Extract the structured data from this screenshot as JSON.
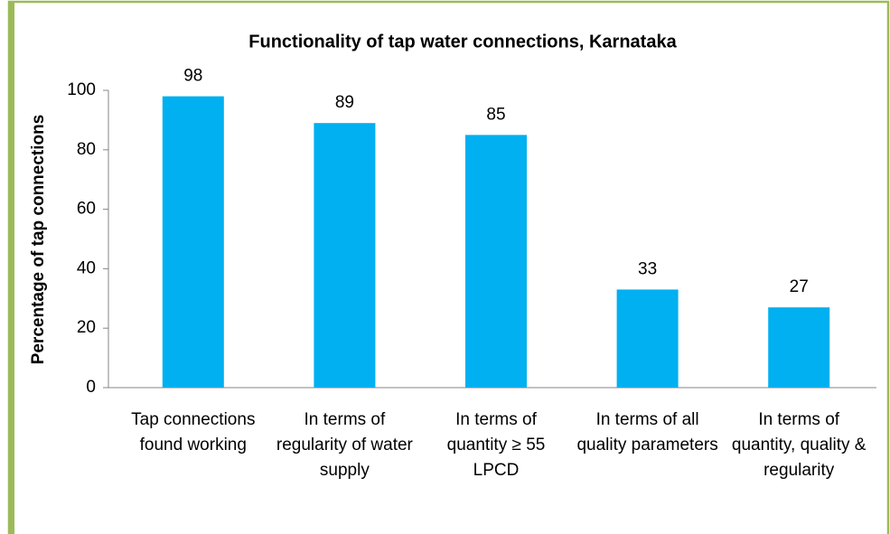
{
  "chart_data": {
    "type": "bar",
    "title": "Functionality of tap water connections, Karnataka",
    "y_label": "Percentage of tap connections",
    "categories": [
      "Tap connections found working",
      "In terms of regularity of water supply",
      "In terms of quantity ≥ 55 LPCD",
      "In terms of all quality parameters",
      "In terms of quantity, quality & regularity"
    ],
    "values": [
      98,
      89,
      85,
      33,
      27
    ],
    "color": "#00b0f0",
    "ylim": [
      0,
      100
    ],
    "yticks": [
      0,
      20,
      40,
      60,
      80,
      100
    ],
    "grid": false
  }
}
